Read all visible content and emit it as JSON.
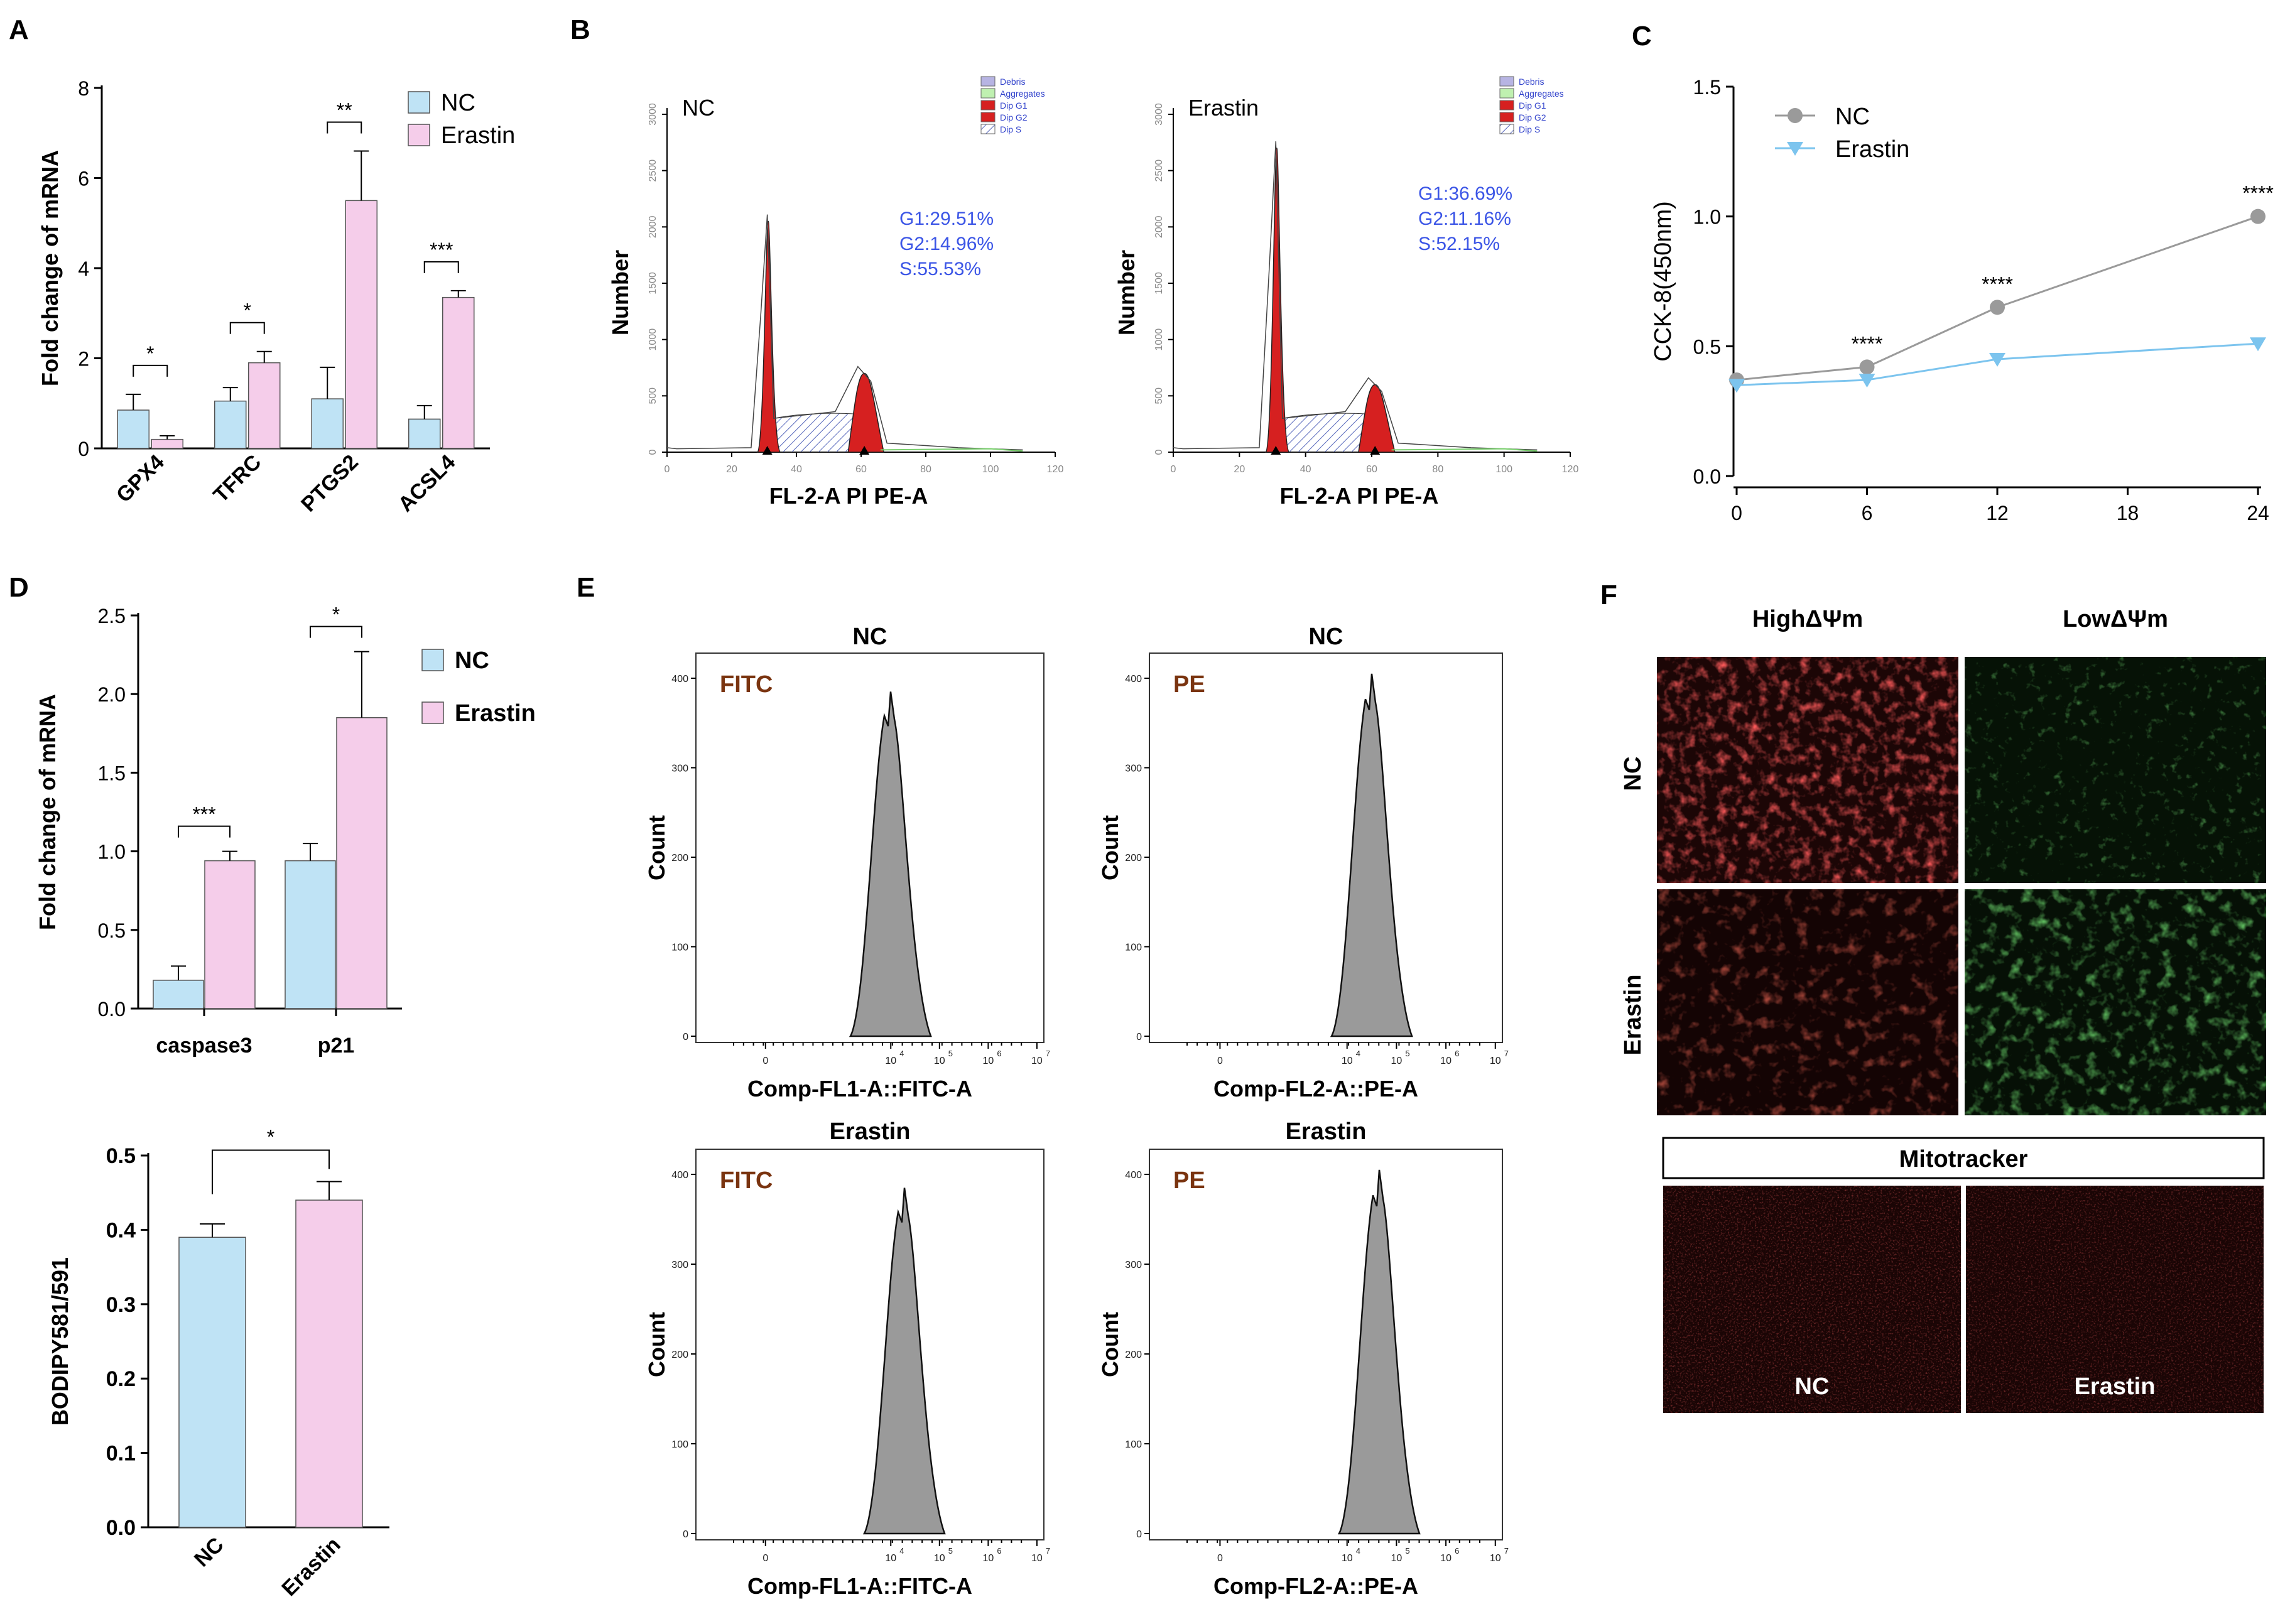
{
  "panels": {
    "A": "A",
    "B": "B",
    "C": "C",
    "D": "D",
    "E": "E",
    "F": "F"
  },
  "colors": {
    "nc": "#bfe3f5",
    "erastin": "#f5cdea",
    "nc_line": "#9a9a9a",
    "erastin_line": "#7cc4ee",
    "stat_text": "#3b55e6"
  },
  "chart_data": [
    {
      "id": "A",
      "type": "bar",
      "ylabel": "Fold change of mRNA",
      "ylim": [
        0,
        8
      ],
      "yticks": [
        "0",
        "2",
        "4",
        "6",
        "8"
      ],
      "categories": [
        "GPX4",
        "TFRC",
        "PTGS2",
        "ACSL4"
      ],
      "series": [
        {
          "name": "NC",
          "values": [
            0.85,
            1.05,
            1.1,
            0.65
          ],
          "errors": [
            0.35,
            0.3,
            0.7,
            0.3
          ]
        },
        {
          "name": "Erastin",
          "values": [
            0.2,
            1.9,
            5.5,
            3.35
          ],
          "errors": [
            0.08,
            0.25,
            1.1,
            0.15
          ]
        }
      ],
      "significance": [
        "*",
        "*",
        "**",
        "***"
      ]
    },
    {
      "id": "C",
      "type": "line",
      "ylabel": "CCK-8(450nm)",
      "ylim": [
        0.0,
        1.5
      ],
      "yticks": [
        "0.0",
        "0.5",
        "1.0",
        "1.5"
      ],
      "xticks": [
        "0",
        "6",
        "12",
        "18",
        "24"
      ],
      "x": [
        0,
        6,
        12,
        24
      ],
      "series": [
        {
          "name": "NC",
          "values": [
            0.37,
            0.42,
            0.65,
            1.0
          ]
        },
        {
          "name": "Erastin",
          "values": [
            0.35,
            0.37,
            0.45,
            0.51
          ]
        }
      ],
      "significance": [
        {
          "x": 6,
          "label": "****"
        },
        {
          "x": 12,
          "label": "****"
        },
        {
          "x": 24,
          "label": "****"
        }
      ]
    },
    {
      "id": "D1",
      "type": "bar",
      "ylabel": "Fold change of mRNA",
      "ylim": [
        0.0,
        2.5
      ],
      "yticks": [
        "0.0",
        "0.5",
        "1.0",
        "1.5",
        "2.0",
        "2.5"
      ],
      "categories": [
        "caspase3",
        "p21"
      ],
      "series": [
        {
          "name": "NC",
          "values": [
            0.18,
            0.94
          ],
          "errors": [
            0.09,
            0.11
          ]
        },
        {
          "name": "Erastin",
          "values": [
            0.94,
            1.85
          ],
          "errors": [
            0.06,
            0.42
          ]
        }
      ],
      "significance": [
        "***",
        "*"
      ]
    },
    {
      "id": "D2",
      "type": "bar",
      "ylabel": "BODIPY581/591",
      "ylim": [
        0.0,
        0.5
      ],
      "yticks": [
        "0.0",
        "0.1",
        "0.2",
        "0.3",
        "0.4",
        "0.5"
      ],
      "categories": [
        "NC",
        "Erastin"
      ],
      "values": [
        0.39,
        0.44
      ],
      "errors": [
        0.018,
        0.025
      ],
      "significance": "*"
    },
    {
      "id": "B",
      "type": "histogram",
      "xlabel": "FL-2-A PI PE-A",
      "ylabel": "Number",
      "xticks": [
        "0",
        "20",
        "40",
        "60",
        "80",
        "100",
        "120"
      ],
      "yticks": [
        "0",
        "500",
        "1000",
        "1500",
        "2000",
        "2500",
        "3000"
      ],
      "legend": [
        "Debris",
        "Aggregates",
        "Dip G1",
        "Dip G2",
        "Dip S"
      ],
      "plots": [
        {
          "title": "NC",
          "G1_peak": 2050,
          "G2_peak": 700,
          "stats": [
            "G1:29.51%",
            "G2:14.96%",
            "S:55.53%"
          ]
        },
        {
          "title": "Erastin",
          "G1_peak": 2700,
          "G2_peak": 600,
          "stats": [
            "G1:36.69%",
            "G2:11.16%",
            "S:52.15%"
          ]
        }
      ]
    },
    {
      "id": "E",
      "type": "histogram",
      "ylabel": "Count",
      "yticks": [
        "0",
        "100",
        "200",
        "300",
        "400"
      ],
      "xticks": [
        "0",
        "10",
        "10",
        "10",
        "10"
      ],
      "xtick_exps": [
        "",
        "4",
        "5",
        "6",
        "7"
      ],
      "plots": [
        {
          "title": "NC",
          "channel": "FITC",
          "xlabel": "Comp-FL1-A::FITC-A",
          "peak": 385
        },
        {
          "title": "NC",
          "channel": "PE",
          "xlabel": "Comp-FL2-A::PE-A",
          "peak": 405
        },
        {
          "title": "Erastin",
          "channel": "FITC",
          "xlabel": "Comp-FL1-A::FITC-A",
          "peak": 385
        },
        {
          "title": "Erastin",
          "channel": "PE",
          "xlabel": "Comp-FL2-A::PE-A",
          "peak": 405
        }
      ]
    }
  ],
  "panelF": {
    "col_high": "HighΔΨm",
    "col_low": "LowΔΨm",
    "row_nc": "NC",
    "row_erastin": "Erastin",
    "mitotracker": "Mitotracker",
    "img_nc": "NC",
    "img_erastin": "Erastin"
  }
}
